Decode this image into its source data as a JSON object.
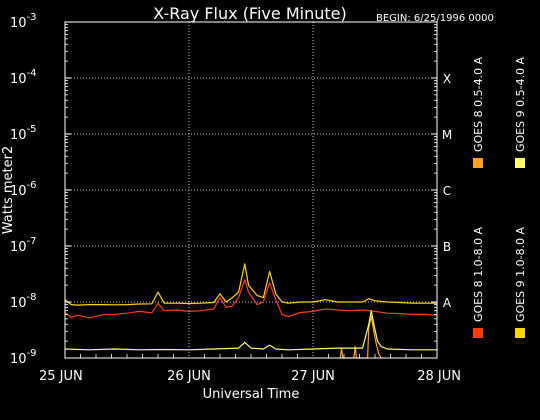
{
  "chart_data": {
    "type": "line",
    "title": "X-Ray Flux (Five Minute)",
    "begin_label": "BEGIN: 6/25/1996 0000",
    "xlabel": "Universal Time",
    "ylabel": "Watts meter2",
    "x_ticks": [
      "25 JUN",
      "26 JUN",
      "27 JUN",
      "28 JUN"
    ],
    "x_range_days": [
      0,
      3
    ],
    "y_scale": "log",
    "ylim": [
      1e-09,
      0.001
    ],
    "y_ticks": [
      {
        "base": "10",
        "exp": "-3"
      },
      {
        "base": "10",
        "exp": "-4"
      },
      {
        "base": "10",
        "exp": "-5"
      },
      {
        "base": "10",
        "exp": "-6"
      },
      {
        "base": "10",
        "exp": "-7"
      },
      {
        "base": "10",
        "exp": "-8"
      },
      {
        "base": "10",
        "exp": "-9"
      }
    ],
    "flare_classes": [
      "X",
      "M",
      "C",
      "B",
      "A"
    ],
    "grid": true,
    "legend_position": "right, vertical",
    "series": [
      {
        "name": "GOES 8  1.0-8.0 A",
        "color": "#ff3c00",
        "points": [
          [
            0.0,
            6.5e-09
          ],
          [
            0.05,
            5.3e-09
          ],
          [
            0.1,
            5.8e-09
          ],
          [
            0.2,
            5.2e-09
          ],
          [
            0.3,
            5.9e-09
          ],
          [
            0.4,
            6e-09
          ],
          [
            0.5,
            6.3e-09
          ],
          [
            0.6,
            6.8e-09
          ],
          [
            0.7,
            6.4e-09
          ],
          [
            0.75,
            9.5e-09
          ],
          [
            0.8,
            7e-09
          ],
          [
            0.9,
            7.2e-09
          ],
          [
            1.0,
            6.8e-09
          ],
          [
            1.1,
            7e-09
          ],
          [
            1.2,
            7.5e-09
          ],
          [
            1.25,
            1.2e-08
          ],
          [
            1.3,
            8e-09
          ],
          [
            1.35,
            8.5e-09
          ],
          [
            1.4,
            1.2e-08
          ],
          [
            1.45,
            2.5e-08
          ],
          [
            1.48,
            1.5e-08
          ],
          [
            1.55,
            9e-09
          ],
          [
            1.6,
            1e-08
          ],
          [
            1.65,
            2.2e-08
          ],
          [
            1.7,
            1.1e-08
          ],
          [
            1.75,
            6e-09
          ],
          [
            1.8,
            5.5e-09
          ],
          [
            1.9,
            6.5e-09
          ],
          [
            2.0,
            6.8e-09
          ],
          [
            2.1,
            7.5e-09
          ],
          [
            2.2,
            7.2e-09
          ],
          [
            2.3,
            7e-09
          ],
          [
            2.4,
            7.2e-09
          ],
          [
            2.5,
            6.8e-09
          ],
          [
            2.6,
            6.3e-09
          ],
          [
            2.7,
            6.2e-09
          ],
          [
            2.8,
            6e-09
          ],
          [
            2.9,
            6e-09
          ],
          [
            3.0,
            5.8e-09
          ]
        ]
      },
      {
        "name": "GOES 8  0.5-4.0 A",
        "color": "#ffa020",
        "points": [
          [
            2.22,
            1e-09
          ],
          [
            2.23,
            1.5e-09
          ],
          [
            2.24,
            1e-09
          ],
          [
            2.33,
            1e-09
          ],
          [
            2.34,
            1.6e-09
          ],
          [
            2.35,
            1e-09
          ],
          [
            2.44,
            1e-09
          ],
          [
            2.45,
            3.5e-09
          ],
          [
            2.47,
            5.5e-09
          ],
          [
            2.49,
            3e-09
          ],
          [
            2.51,
            1.8e-09
          ],
          [
            2.53,
            1.2e-09
          ],
          [
            2.55,
            1e-09
          ]
        ]
      },
      {
        "name": "GOES 9  1.0-8.0 A",
        "color": "#ffd700",
        "points": [
          [
            0.0,
            1.1e-08
          ],
          [
            0.05,
            9e-09
          ],
          [
            0.1,
            8.8e-09
          ],
          [
            0.2,
            9e-09
          ],
          [
            0.3,
            9e-09
          ],
          [
            0.4,
            8.9e-09
          ],
          [
            0.5,
            9e-09
          ],
          [
            0.6,
            9.2e-09
          ],
          [
            0.7,
            9.3e-09
          ],
          [
            0.75,
            1.5e-08
          ],
          [
            0.8,
            9.5e-09
          ],
          [
            0.9,
            9.5e-09
          ],
          [
            1.0,
            9.4e-09
          ],
          [
            1.1,
            9.5e-09
          ],
          [
            1.2,
            9.8e-09
          ],
          [
            1.25,
            1.4e-08
          ],
          [
            1.3,
            1e-08
          ],
          [
            1.35,
            1.2e-08
          ],
          [
            1.4,
            1.5e-08
          ],
          [
            1.45,
            4.8e-08
          ],
          [
            1.48,
            2e-08
          ],
          [
            1.55,
            1.3e-08
          ],
          [
            1.6,
            1.2e-08
          ],
          [
            1.65,
            3.5e-08
          ],
          [
            1.7,
            1.4e-08
          ],
          [
            1.75,
            1e-08
          ],
          [
            1.8,
            9.5e-09
          ],
          [
            1.9,
            1e-08
          ],
          [
            2.0,
            1e-08
          ],
          [
            2.1,
            1.1e-08
          ],
          [
            2.2,
            1e-08
          ],
          [
            2.3,
            1e-08
          ],
          [
            2.4,
            1e-08
          ],
          [
            2.45,
            1.15e-08
          ],
          [
            2.5,
            1.05e-08
          ],
          [
            2.6,
            1e-08
          ],
          [
            2.7,
            9.8e-09
          ],
          [
            2.8,
            9.5e-09
          ],
          [
            2.9,
            9.5e-09
          ],
          [
            3.0,
            9.5e-09
          ]
        ]
      },
      {
        "name": "GOES 9  0.5-4.0 A",
        "color": "#ffff66",
        "points": [
          [
            0.0,
            1.45e-09
          ],
          [
            0.2,
            1.4e-09
          ],
          [
            0.4,
            1.45e-09
          ],
          [
            0.6,
            1.4e-09
          ],
          [
            0.8,
            1.42e-09
          ],
          [
            1.0,
            1.4e-09
          ],
          [
            1.2,
            1.45e-09
          ],
          [
            1.4,
            1.5e-09
          ],
          [
            1.45,
            1.9e-09
          ],
          [
            1.5,
            1.5e-09
          ],
          [
            1.6,
            1.45e-09
          ],
          [
            1.65,
            1.7e-09
          ],
          [
            1.7,
            1.45e-09
          ],
          [
            1.8,
            1.4e-09
          ],
          [
            2.0,
            1.45e-09
          ],
          [
            2.2,
            1.5e-09
          ],
          [
            2.4,
            1.5e-09
          ],
          [
            2.45,
            4e-09
          ],
          [
            2.47,
            7e-09
          ],
          [
            2.49,
            4e-09
          ],
          [
            2.52,
            2e-09
          ],
          [
            2.55,
            1.6e-09
          ],
          [
            2.6,
            1.45e-09
          ],
          [
            2.8,
            1.4e-09
          ],
          [
            3.0,
            1.4e-09
          ]
        ]
      }
    ]
  }
}
